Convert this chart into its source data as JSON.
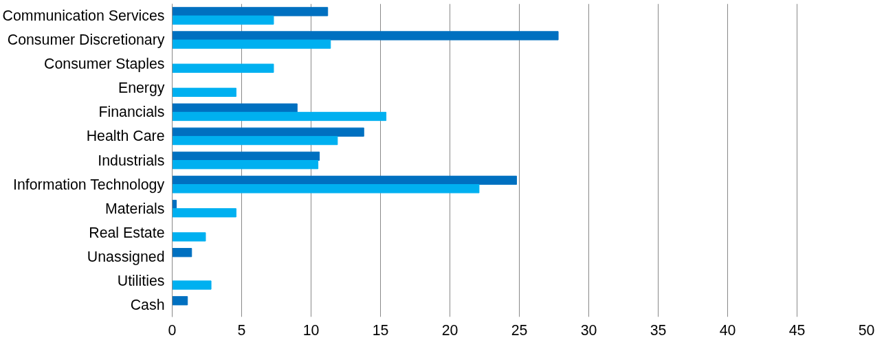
{
  "chart_data": {
    "type": "bar",
    "orientation": "horizontal",
    "categories": [
      "Communication Services",
      "Consumer Discretionary",
      "Consumer Staples",
      "Energy",
      "Financials",
      "Health Care",
      "Industrials",
      "Information Technology",
      "Materials",
      "Real Estate",
      "Unassigned",
      "Utilities",
      "Cash"
    ],
    "series": [
      {
        "color": "#0070c0",
        "values": [
          11.2,
          27.8,
          null,
          null,
          9.0,
          13.8,
          10.6,
          24.8,
          0.3,
          null,
          1.4,
          null,
          1.1
        ]
      },
      {
        "color": "#00b0f0",
        "values": [
          7.3,
          11.4,
          7.3,
          4.6,
          15.4,
          11.9,
          10.5,
          22.1,
          4.6,
          2.4,
          null,
          2.8,
          null
        ]
      }
    ],
    "xlim": [
      0,
      50
    ],
    "xticks": [
      0,
      5,
      10,
      15,
      20,
      25,
      30,
      35,
      40,
      45,
      50
    ],
    "grid": "x"
  }
}
